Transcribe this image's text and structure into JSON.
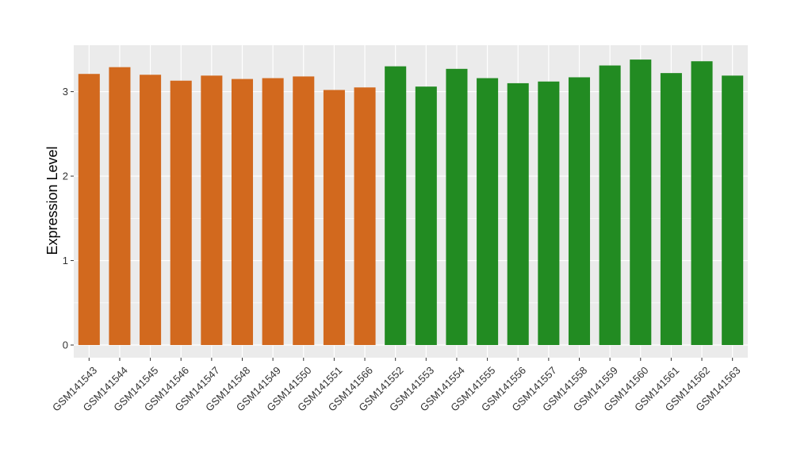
{
  "chart_data": {
    "type": "bar",
    "title": "",
    "xlabel": "",
    "ylabel": "Expression Level",
    "ylim": [
      -0.15,
      3.55
    ],
    "yticks": [
      0,
      1,
      2,
      3
    ],
    "grid": true,
    "legend": "none",
    "panel_background": "#EBEBEB",
    "grid_color": "#FFFFFF",
    "categories": [
      "GSM141543",
      "GSM141544",
      "GSM141545",
      "GSM141546",
      "GSM141547",
      "GSM141548",
      "GSM141549",
      "GSM141550",
      "GSM141551",
      "GSM141566",
      "GSM141552",
      "GSM141553",
      "GSM141554",
      "GSM141555",
      "GSM141556",
      "GSM141557",
      "GSM141558",
      "GSM141559",
      "GSM141560",
      "GSM141561",
      "GSM141562",
      "GSM141563"
    ],
    "values": [
      3.21,
      3.29,
      3.2,
      3.13,
      3.19,
      3.15,
      3.16,
      3.18,
      3.02,
      3.05,
      3.3,
      3.06,
      3.27,
      3.16,
      3.1,
      3.12,
      3.17,
      3.31,
      3.38,
      3.22,
      3.36,
      3.19
    ],
    "bar_colors": [
      "#D2691E",
      "#D2691E",
      "#D2691E",
      "#D2691E",
      "#D2691E",
      "#D2691E",
      "#D2691E",
      "#D2691E",
      "#D2691E",
      "#D2691E",
      "#228B22",
      "#228B22",
      "#228B22",
      "#228B22",
      "#228B22",
      "#228B22",
      "#228B22",
      "#228B22",
      "#228B22",
      "#228B22",
      "#228B22",
      "#228B22"
    ]
  }
}
